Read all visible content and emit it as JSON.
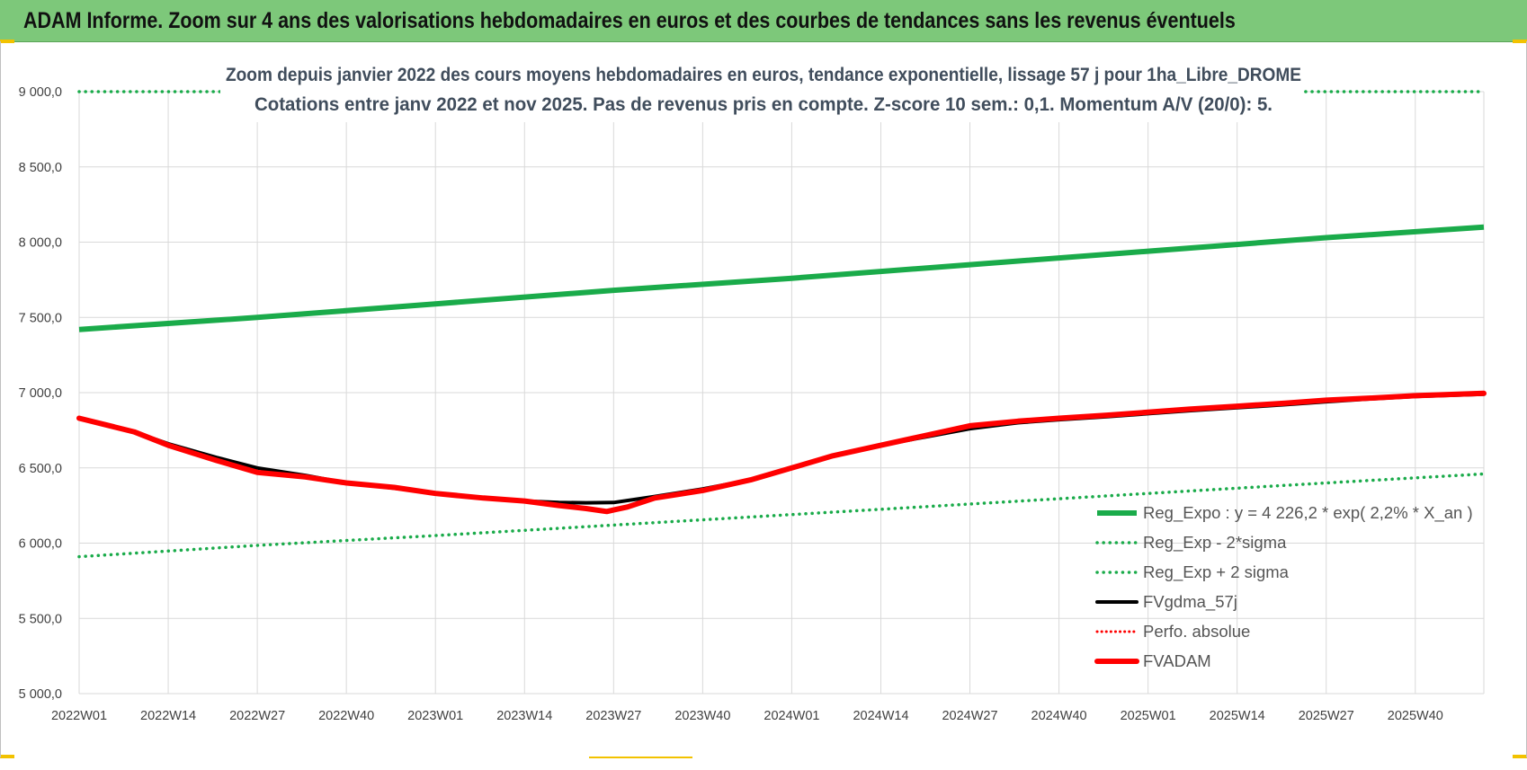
{
  "header": {
    "title": "ADAM Informe. Zoom sur 4 ans des valorisations hebdomadaires en euros et des courbes de tendances sans les revenus éventuels"
  },
  "colors": {
    "header_bg": "#7dc87a",
    "trend": "#1aab4a",
    "band": "#1aab4a",
    "fvgdma": "#000000",
    "fvadam": "#ff0000",
    "perfo": "#ff0000"
  },
  "chart_data": {
    "type": "line",
    "title": "Zoom depuis janvier 2022 des cours moyens hebdomadaires en euros, tendance exponentielle, lissage 57 j pour 1ha_Libre_DROME",
    "subtitle": "Cotations entre janv 2022 et nov 2025. Pas de revenus pris en compte. Z-score 10 sem.: 0,1. Momentum A/V (20/0): 5.",
    "x_range": [
      0,
      205
    ],
    "x_tick_positions": [
      0,
      13,
      26,
      39,
      52,
      65,
      78,
      91,
      104,
      117,
      130,
      143,
      156,
      169,
      182,
      195
    ],
    "x_tick_labels": [
      "2022W01",
      "2022W14",
      "2022W27",
      "2022W40",
      "2023W01",
      "2023W14",
      "2023W27",
      "2023W40",
      "2024W01",
      "2024W14",
      "2024W27",
      "2024W40",
      "2025W01",
      "2025W14",
      "2025W27",
      "2025W40"
    ],
    "ylim": [
      5000,
      9000
    ],
    "y_ticks": [
      5000,
      5500,
      6000,
      6500,
      7000,
      7500,
      8000,
      8500,
      9000
    ],
    "y_tick_labels": [
      "5 000,0",
      "5 500,0",
      "6 000,0",
      "6 500,0",
      "7 000,0",
      "7 500,0",
      "8 000,0",
      "8 500,0",
      "9 000,0"
    ],
    "grid": true,
    "legend_position": "bottom-right",
    "series": [
      {
        "name": "Reg_Expo : y = 4 226,2 * exp( 2,2% *  X_an )",
        "key": "reg_expo",
        "style": "solid-thick",
        "x": [
          0,
          26,
          52,
          78,
          104,
          130,
          156,
          182,
          205
        ],
        "values": [
          7420,
          7500,
          7590,
          7680,
          7760,
          7850,
          7940,
          8030,
          8100
        ]
      },
      {
        "name": "Reg_Exp - 2*sigma",
        "key": "reg_minus",
        "style": "dotted",
        "x": [
          0,
          26,
          52,
          78,
          104,
          130,
          156,
          182,
          205
        ],
        "values": [
          5910,
          5985,
          6050,
          6120,
          6190,
          6260,
          6330,
          6400,
          6460
        ]
      },
      {
        "name": "Reg_Exp + 2 sigma",
        "key": "reg_plus",
        "style": "dotted",
        "x": [
          0,
          21,
          179,
          205
        ],
        "values": [
          9000,
          9000,
          9000,
          9000
        ],
        "note": "visible only at both ends, beyond the axis maximum in between"
      },
      {
        "name": "FVgdma_57j",
        "key": "fvgdma",
        "style": "solid",
        "x": [
          0,
          8,
          13,
          20,
          26,
          33,
          39,
          46,
          52,
          59,
          65,
          70,
          74,
          78,
          84,
          91,
          98,
          104,
          110,
          117,
          124,
          130,
          137,
          143,
          150,
          156,
          162,
          169,
          176,
          182,
          189,
          195,
          205
        ],
        "values": [
          6830,
          6740,
          6660,
          6570,
          6500,
          6450,
          6400,
          6365,
          6330,
          6300,
          6280,
          6270,
          6268,
          6270,
          6310,
          6360,
          6420,
          6500,
          6580,
          6650,
          6710,
          6760,
          6800,
          6820,
          6840,
          6860,
          6880,
          6900,
          6920,
          6940,
          6960,
          6975,
          6990
        ]
      },
      {
        "name": "Perfo. absolue",
        "key": "perfo",
        "style": "dotted-red",
        "x": [],
        "values": []
      },
      {
        "name": "FVADAM",
        "key": "fvadam",
        "style": "solid-thick",
        "x": [
          0,
          8,
          13,
          20,
          26,
          33,
          39,
          46,
          52,
          59,
          65,
          70,
          74,
          77,
          78,
          80,
          84,
          91,
          98,
          104,
          110,
          117,
          124,
          130,
          137,
          143,
          150,
          156,
          162,
          169,
          176,
          182,
          189,
          195,
          205
        ],
        "values": [
          6830,
          6740,
          6650,
          6550,
          6470,
          6440,
          6400,
          6370,
          6330,
          6300,
          6280,
          6250,
          6230,
          6210,
          6220,
          6240,
          6300,
          6350,
          6420,
          6500,
          6580,
          6650,
          6720,
          6780,
          6810,
          6830,
          6850,
          6870,
          6890,
          6910,
          6930,
          6950,
          6965,
          6980,
          6995
        ]
      }
    ]
  }
}
